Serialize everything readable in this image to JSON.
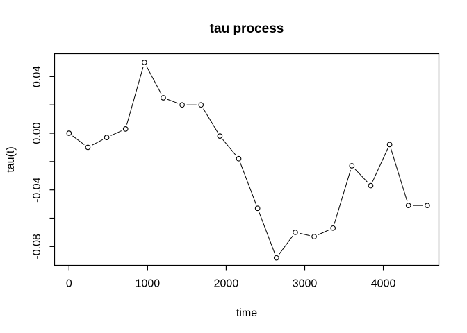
{
  "window": {
    "background": "#ffffff",
    "foreground": "#000000"
  },
  "chart_data": {
    "type": "line",
    "title": "tau process",
    "xlabel": "time",
    "ylabel": "tau(t)",
    "marker": "open-circle",
    "marker_fill": "#ffffff",
    "line_color": "#000000",
    "grid": false,
    "legend": null,
    "x": [
      0,
      240,
      480,
      720,
      960,
      1200,
      1440,
      1680,
      1920,
      2160,
      2400,
      2640,
      2880,
      3120,
      3360,
      3600,
      3840,
      4080,
      4320,
      4560
    ],
    "y": [
      0.0,
      -0.01,
      -0.003,
      0.003,
      0.05,
      0.025,
      0.02,
      0.02,
      -0.002,
      -0.018,
      -0.053,
      -0.088,
      -0.07,
      -0.073,
      -0.067,
      -0.023,
      -0.037,
      -0.008,
      -0.051,
      -0.051
    ],
    "xlim": [
      -184,
      4707
    ],
    "ylim": [
      -0.0933,
      0.0561
    ],
    "x_ticks": [
      0,
      1000,
      2000,
      3000,
      4000
    ],
    "x_tick_labels": [
      "0",
      "1000",
      "2000",
      "3000",
      "4000"
    ],
    "y_ticks": [
      0.04,
      0.02,
      0.0,
      -0.02,
      -0.04,
      -0.06,
      -0.08
    ],
    "y_tick_labels": [
      "0.04",
      "",
      "0.00",
      "",
      "-0.04",
      "",
      "-0.08"
    ]
  }
}
